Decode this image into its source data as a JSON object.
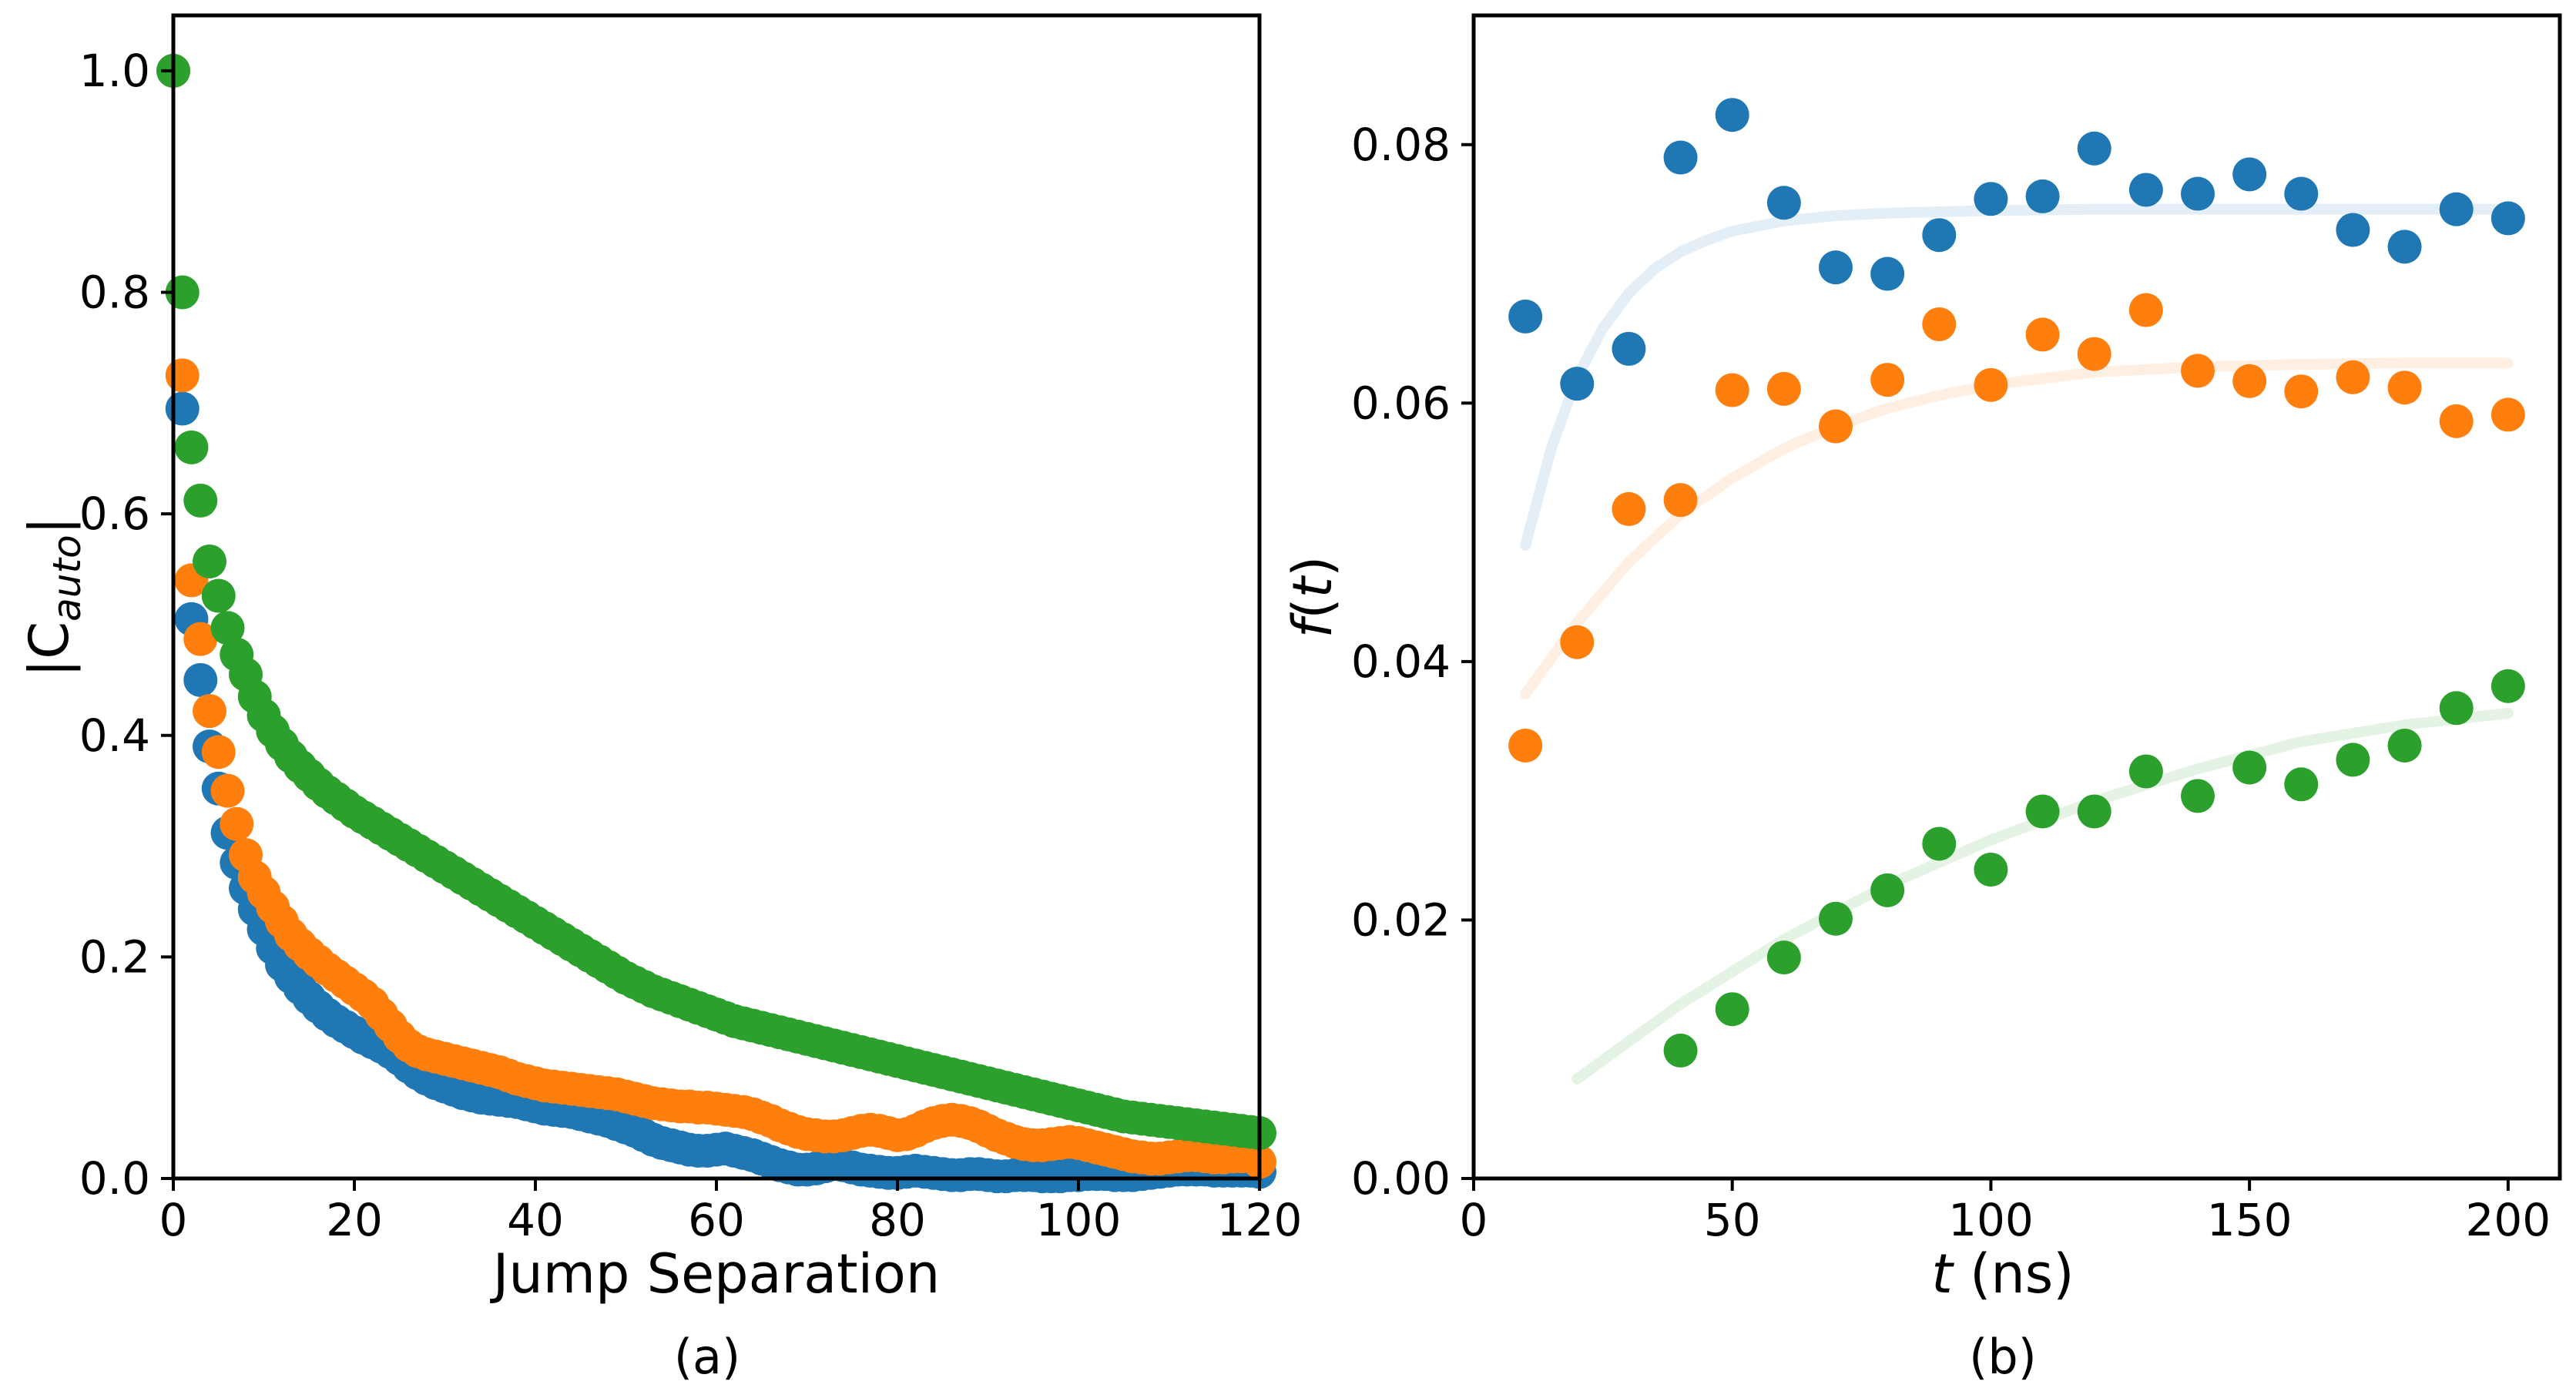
{
  "colors": {
    "series1": "#1f77b4",
    "series2": "#ff7f0e",
    "series3": "#2ca02c",
    "axis": "#000000",
    "background": "#ffffff"
  },
  "chart_data": [
    {
      "type": "scatter",
      "panel_label": "(a)",
      "title": "",
      "xlabel": "Jump Separation",
      "ylabel": "|C_auto|",
      "ylabel_main": "|C",
      "ylabel_sub": "auto",
      "ylabel_close": "|",
      "xlim": [
        0,
        120
      ],
      "ylim": [
        0,
        1.05
      ],
      "xticks": [
        0,
        20,
        40,
        60,
        80,
        100,
        120
      ],
      "xtick_labels": [
        "0",
        "20",
        "40",
        "60",
        "80",
        "100",
        "120"
      ],
      "yticks": [
        0.0,
        0.2,
        0.4,
        0.6,
        0.8,
        1.0
      ],
      "ytick_labels": [
        "0.0",
        "0.2",
        "0.4",
        "0.6",
        "0.8",
        "1.0"
      ],
      "grid": false,
      "series": [
        {
          "name": "blue",
          "color": "#1f77b4",
          "values": [
            1.0,
            0.695,
            0.505,
            0.45,
            0.39,
            0.352,
            0.312,
            0.285,
            0.262,
            0.243,
            0.225,
            0.208,
            0.193,
            0.182,
            0.172,
            0.163,
            0.155,
            0.148,
            0.142,
            0.137,
            0.132,
            0.127,
            0.123,
            0.119,
            0.114,
            0.108,
            0.101,
            0.095,
            0.09,
            0.086,
            0.083,
            0.08,
            0.077,
            0.075,
            0.073,
            0.072,
            0.071,
            0.07,
            0.069,
            0.067,
            0.065,
            0.063,
            0.062,
            0.061,
            0.06,
            0.058,
            0.056,
            0.054,
            0.052,
            0.049,
            0.046,
            0.043,
            0.039,
            0.035,
            0.032,
            0.03,
            0.028,
            0.026,
            0.025,
            0.025,
            0.026,
            0.027,
            0.025,
            0.023,
            0.021,
            0.018,
            0.015,
            0.012,
            0.01,
            0.008,
            0.008,
            0.009,
            0.011,
            0.013,
            0.012,
            0.01,
            0.008,
            0.007,
            0.006,
            0.005,
            0.005,
            0.006,
            0.007,
            0.006,
            0.005,
            0.004,
            0.003,
            0.003,
            0.004,
            0.004,
            0.003,
            0.002,
            0.002,
            0.003,
            0.003,
            0.003,
            0.002,
            0.002,
            0.002,
            0.003,
            0.003,
            0.004,
            0.004,
            0.004,
            0.003,
            0.003,
            0.003,
            0.004,
            0.005,
            0.006,
            0.007,
            0.008,
            0.008,
            0.008,
            0.008,
            0.007,
            0.007,
            0.007,
            0.007,
            0.007,
            0.006
          ]
        },
        {
          "name": "orange",
          "color": "#ff7f0e",
          "values": [
            1.0,
            0.725,
            0.54,
            0.487,
            0.422,
            0.385,
            0.35,
            0.32,
            0.292,
            0.272,
            0.258,
            0.245,
            0.232,
            0.22,
            0.211,
            0.203,
            0.196,
            0.189,
            0.183,
            0.177,
            0.171,
            0.165,
            0.158,
            0.148,
            0.138,
            0.128,
            0.12,
            0.115,
            0.112,
            0.11,
            0.108,
            0.106,
            0.104,
            0.102,
            0.1,
            0.098,
            0.096,
            0.093,
            0.09,
            0.088,
            0.086,
            0.084,
            0.083,
            0.082,
            0.081,
            0.08,
            0.079,
            0.078,
            0.077,
            0.076,
            0.074,
            0.072,
            0.07,
            0.068,
            0.067,
            0.066,
            0.065,
            0.065,
            0.064,
            0.064,
            0.063,
            0.062,
            0.061,
            0.06,
            0.058,
            0.055,
            0.052,
            0.048,
            0.045,
            0.042,
            0.04,
            0.039,
            0.038,
            0.038,
            0.039,
            0.041,
            0.043,
            0.044,
            0.043,
            0.041,
            0.039,
            0.04,
            0.043,
            0.047,
            0.05,
            0.052,
            0.053,
            0.052,
            0.05,
            0.047,
            0.043,
            0.039,
            0.036,
            0.033,
            0.031,
            0.03,
            0.03,
            0.031,
            0.032,
            0.033,
            0.032,
            0.03,
            0.028,
            0.026,
            0.024,
            0.022,
            0.02,
            0.019,
            0.018,
            0.018,
            0.019,
            0.02,
            0.021,
            0.021,
            0.02,
            0.019,
            0.019,
            0.02,
            0.02,
            0.02,
            0.015
          ]
        },
        {
          "name": "green",
          "color": "#2ca02c",
          "values": [
            1.0,
            0.8,
            0.66,
            0.612,
            0.557,
            0.526,
            0.497,
            0.473,
            0.455,
            0.435,
            0.418,
            0.404,
            0.392,
            0.381,
            0.372,
            0.364,
            0.356,
            0.349,
            0.343,
            0.337,
            0.331,
            0.326,
            0.321,
            0.316,
            0.311,
            0.306,
            0.301,
            0.296,
            0.291,
            0.286,
            0.281,
            0.276,
            0.271,
            0.266,
            0.261,
            0.256,
            0.251,
            0.246,
            0.241,
            0.236,
            0.231,
            0.226,
            0.221,
            0.216,
            0.211,
            0.206,
            0.201,
            0.196,
            0.191,
            0.186,
            0.181,
            0.177,
            0.173,
            0.169,
            0.166,
            0.163,
            0.16,
            0.157,
            0.154,
            0.151,
            0.148,
            0.145,
            0.142,
            0.14,
            0.138,
            0.136,
            0.134,
            0.132,
            0.13,
            0.128,
            0.126,
            0.124,
            0.122,
            0.12,
            0.118,
            0.116,
            0.114,
            0.112,
            0.11,
            0.108,
            0.106,
            0.104,
            0.102,
            0.1,
            0.098,
            0.096,
            0.094,
            0.092,
            0.09,
            0.088,
            0.086,
            0.084,
            0.082,
            0.08,
            0.078,
            0.076,
            0.074,
            0.072,
            0.07,
            0.068,
            0.066,
            0.064,
            0.062,
            0.06,
            0.058,
            0.056,
            0.055,
            0.054,
            0.053,
            0.052,
            0.051,
            0.05,
            0.049,
            0.048,
            0.047,
            0.046,
            0.045,
            0.044,
            0.043,
            0.042,
            0.041
          ]
        }
      ]
    },
    {
      "type": "scatter",
      "panel_label": "(b)",
      "title": "",
      "xlabel": "t (ns)",
      "xlabel_italic": "t",
      "xlabel_rest": " (ns)",
      "ylabel": "f(t)",
      "ylabel_f": "f",
      "ylabel_open": "(",
      "ylabel_t": "t",
      "ylabel_close": ")",
      "xlim": [
        0,
        210
      ],
      "ylim": [
        0,
        0.09
      ],
      "xticks": [
        0,
        50,
        100,
        150,
        200
      ],
      "xtick_labels": [
        "0",
        "50",
        "100",
        "150",
        "200"
      ],
      "yticks": [
        0.0,
        0.02,
        0.04,
        0.06,
        0.08
      ],
      "ytick_labels": [
        "0.00",
        "0.02",
        "0.04",
        "0.06",
        "0.08"
      ],
      "grid": false,
      "series": [
        {
          "name": "blue",
          "color": "#1f77b4",
          "x": [
            10,
            20,
            30,
            40,
            50,
            60,
            70,
            80,
            90,
            100,
            110,
            120,
            130,
            140,
            150,
            160,
            170,
            180,
            190,
            200
          ],
          "y": [
            0.0667,
            0.0615,
            0.0642,
            0.079,
            0.0823,
            0.0755,
            0.0705,
            0.07,
            0.073,
            0.0758,
            0.076,
            0.0797,
            0.0765,
            0.0762,
            0.0777,
            0.0762,
            0.0734,
            0.0721,
            0.075,
            0.0743
          ],
          "fit": {
            "x": [
              10,
              15,
              20,
              25,
              30,
              35,
              40,
              45,
              50,
              60,
              70,
              80,
              90,
              100,
              120,
              140,
              160,
              180,
              200
            ],
            "y": [
              0.049,
              0.0565,
              0.062,
              0.0658,
              0.0685,
              0.0704,
              0.0717,
              0.0726,
              0.0733,
              0.0741,
              0.0745,
              0.0747,
              0.0748,
              0.0749,
              0.075,
              0.075,
              0.075,
              0.075,
              0.075
            ]
          }
        },
        {
          "name": "orange",
          "color": "#ff7f0e",
          "x": [
            10,
            20,
            30,
            40,
            50,
            60,
            70,
            80,
            90,
            100,
            110,
            120,
            130,
            140,
            150,
            160,
            170,
            180,
            190,
            200
          ],
          "y": [
            0.0335,
            0.0415,
            0.0518,
            0.0525,
            0.061,
            0.0611,
            0.0582,
            0.0618,
            0.0661,
            0.0614,
            0.0653,
            0.0638,
            0.0672,
            0.0625,
            0.0617,
            0.0609,
            0.062,
            0.0612,
            0.0586,
            0.0591
          ],
          "fit": {
            "x": [
              10,
              20,
              30,
              40,
              50,
              60,
              70,
              80,
              90,
              100,
              120,
              140,
              160,
              180,
              200
            ],
            "y": [
              0.0375,
              0.043,
              0.0477,
              0.0514,
              0.0542,
              0.0565,
              0.0582,
              0.0596,
              0.0606,
              0.0614,
              0.0624,
              0.0628,
              0.063,
              0.0631,
              0.0631
            ]
          }
        },
        {
          "name": "green",
          "color": "#2ca02c",
          "x": [
            40,
            50,
            60,
            70,
            80,
            90,
            100,
            110,
            120,
            130,
            140,
            150,
            160,
            170,
            180,
            190,
            200
          ],
          "y": [
            0.0099,
            0.0131,
            0.0171,
            0.0201,
            0.0223,
            0.0259,
            0.0239,
            0.0284,
            0.0284,
            0.0315,
            0.0296,
            0.0318,
            0.0305,
            0.0324,
            0.0335,
            0.0364,
            0.0381
          ],
          "fit": {
            "x": [
              20,
              40,
              60,
              80,
              100,
              120,
              140,
              160,
              180,
              200
            ],
            "y": [
              0.0077,
              0.0135,
              0.0185,
              0.0227,
              0.0262,
              0.0292,
              0.0317,
              0.0338,
              0.0351,
              0.036
            ]
          }
        }
      ]
    }
  ]
}
